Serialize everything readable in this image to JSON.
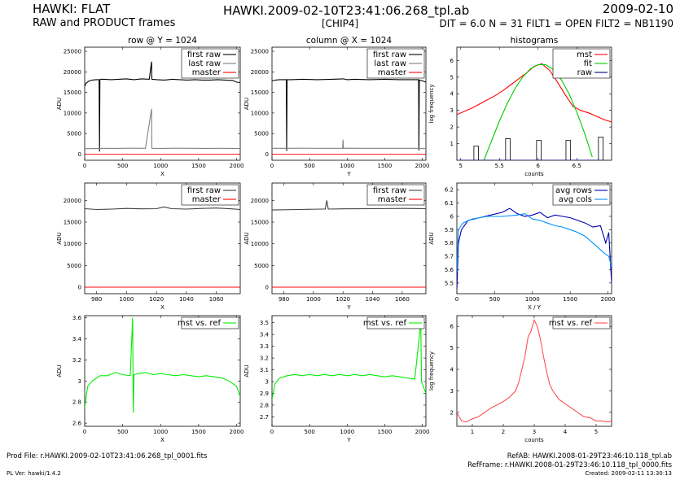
{
  "header": {
    "left_title": "HAWKI: FLAT",
    "left_subtitle": "RAW and PRODUCT frames",
    "center_title": "HAWKI.2009-02-10T23:41:06.268_tpl.ab",
    "center_subtitle": "[CHIP4]",
    "right_title": "2009-02-10",
    "right_subtitle": "DIT = 6.0 N = 31 FILT1 = OPEN FILT2 = NB1190"
  },
  "footer": {
    "prod_file": "Prod File: r.HAWKI.2009-02-10T23:41:06.268_tpl_0001.fits",
    "pl_version": "PL Ver: hawki/1.4.2",
    "ref_ab": "RefAB: HAWKI.2008-01-29T23:46:10.118_tpl.ab",
    "ref_frame": "RefFrame: r.HAWKI.2008-01-29T23:46:10.118_tpl_0000.fits",
    "created": "Created: 2009-02-11 13:30:13"
  },
  "colors": {
    "raw": "#000000",
    "last_raw": "#808080",
    "master": "#ff0000",
    "fit": "#00cc00",
    "ratio": "#00ee00",
    "avg_rows": "#0000b0",
    "avg_cols": "#0090ff"
  },
  "chart_data": [
    {
      "id": "row-full",
      "type": "line",
      "title": "row @ Y = 1024",
      "xlabel": "X",
      "ylabel": "ADU",
      "xlim": [
        0,
        2048
      ],
      "ylim": [
        -1500,
        26000
      ],
      "xticks": [
        0,
        500,
        1000,
        1500,
        2000
      ],
      "yticks": [
        0,
        5000,
        10000,
        15000,
        20000,
        25000
      ],
      "legend": [
        "first raw",
        "last raw",
        "master"
      ],
      "legend_position": "top-right",
      "series": [
        {
          "name": "first raw",
          "color": "#000000",
          "x": [
            0,
            20,
            60,
            100,
            150,
            190,
            195,
            200,
            210,
            260,
            350,
            450,
            550,
            650,
            750,
            850,
            880,
            885,
            890,
            950,
            1050,
            1150,
            1250,
            1350,
            1450,
            1550,
            1650,
            1750,
            1850,
            1950,
            2000,
            2048
          ],
          "y": [
            16500,
            17300,
            17800,
            18000,
            18100,
            18100,
            600,
            18100,
            18200,
            18200,
            18100,
            18200,
            18300,
            18100,
            18300,
            18200,
            22500,
            18200,
            18200,
            18100,
            18000,
            18200,
            18100,
            18000,
            18100,
            18000,
            18000,
            18100,
            18000,
            17900,
            17500,
            17400
          ]
        },
        {
          "name": "last raw",
          "color": "#808080",
          "x": [
            0,
            150,
            250,
            400,
            600,
            800,
            880,
            885,
            890,
            1000,
            1200,
            1400,
            1600,
            1800,
            2048
          ],
          "y": [
            1300,
            1350,
            1400,
            1380,
            1420,
            1400,
            11000,
            1400,
            1400,
            1390,
            1420,
            1400,
            1380,
            1400,
            1350
          ]
        },
        {
          "name": "master",
          "color": "#ff0000",
          "x": [
            0,
            2048
          ],
          "y": [
            0,
            0
          ]
        }
      ]
    },
    {
      "id": "col-full",
      "type": "line",
      "title": "column @ X = 1024",
      "xlabel": "Y",
      "ylabel": "ADU",
      "xlim": [
        0,
        2048
      ],
      "ylim": [
        -1500,
        26000
      ],
      "xticks": [
        0,
        500,
        1000,
        1500,
        2000
      ],
      "yticks": [
        0,
        5000,
        10000,
        15000,
        20000,
        25000
      ],
      "legend": [
        "first raw",
        "last raw",
        "master"
      ],
      "legend_position": "top-right",
      "series": [
        {
          "name": "first raw",
          "color": "#000000",
          "x": [
            0,
            50,
            100,
            150,
            190,
            195,
            200,
            250,
            400,
            600,
            800,
            950,
            1000,
            1100,
            1300,
            1500,
            1700,
            1850,
            1950,
            1955,
            1960,
            2000,
            2048
          ],
          "y": [
            17800,
            18000,
            18100,
            18100,
            18100,
            800,
            18100,
            18100,
            18200,
            18100,
            18200,
            18300,
            18100,
            18200,
            18100,
            18200,
            18100,
            18100,
            18100,
            900,
            18000,
            17800,
            17500
          ]
        },
        {
          "name": "last raw",
          "color": "#808080",
          "x": [
            0,
            200,
            400,
            600,
            800,
            940,
            945,
            950,
            1000,
            1200,
            1400,
            1600,
            1800,
            2048
          ],
          "y": [
            1400,
            1400,
            1420,
            1400,
            1410,
            1400,
            3500,
            1400,
            1420,
            1400,
            1400,
            1410,
            1400,
            1380
          ]
        },
        {
          "name": "master",
          "color": "#ff0000",
          "x": [
            0,
            2048
          ],
          "y": [
            0,
            0
          ]
        }
      ]
    },
    {
      "id": "histograms",
      "type": "line",
      "title": "histograms",
      "xlabel": "counts",
      "ylabel": "log frequency",
      "xlim": [
        4.95,
        6.95
      ],
      "ylim": [
        0,
        6.8
      ],
      "xticks": [
        5,
        5.5,
        6,
        6.5
      ],
      "yticks": [
        1,
        2,
        3,
        4,
        5,
        6
      ],
      "legend": [
        "mst",
        "fit",
        "raw"
      ],
      "legend_position": "top-right",
      "series": [
        {
          "name": "mst",
          "color": "#ff0000",
          "x": [
            4.95,
            5.05,
            5.15,
            5.25,
            5.35,
            5.45,
            5.55,
            5.65,
            5.75,
            5.85,
            5.95,
            6.05,
            6.15,
            6.25,
            6.35,
            6.45,
            6.55,
            6.65,
            6.75,
            6.85,
            6.95
          ],
          "y": [
            2.75,
            2.95,
            3.15,
            3.4,
            3.65,
            3.9,
            4.2,
            4.55,
            4.9,
            5.25,
            5.65,
            5.8,
            5.4,
            4.7,
            3.95,
            3.25,
            3.0,
            2.85,
            2.65,
            2.45,
            2.3
          ]
        },
        {
          "name": "fit",
          "color": "#00cc00",
          "x": [
            5.3,
            5.4,
            5.5,
            5.6,
            5.7,
            5.8,
            5.9,
            6.0,
            6.1,
            6.2,
            6.3,
            6.4,
            6.5,
            6.6,
            6.7
          ],
          "y": [
            0.0,
            1.2,
            2.35,
            3.4,
            4.3,
            5.0,
            5.5,
            5.75,
            5.75,
            5.45,
            4.85,
            4.0,
            2.9,
            1.65,
            0.2
          ]
        },
        {
          "name": "raw",
          "color": "#000080",
          "x": [
            4.95,
            5.2,
            5.65,
            6.05,
            6.5,
            6.85
          ],
          "y": [
            0,
            0,
            0,
            0,
            0,
            0
          ]
        }
      ],
      "raw_bars": [
        [
          5.17,
          5.23,
          0.85
        ],
        [
          5.58,
          5.64,
          1.3
        ],
        [
          5.98,
          6.04,
          1.2
        ],
        [
          6.36,
          6.42,
          1.2
        ],
        [
          6.78,
          6.84,
          1.4
        ]
      ]
    },
    {
      "id": "row-zoom",
      "type": "line",
      "xlabel": "X",
      "ylabel": "ADU",
      "xlim": [
        972,
        1076
      ],
      "ylim": [
        -1500,
        24000
      ],
      "xticks": [
        980,
        1000,
        1020,
        1040,
        1060
      ],
      "yticks": [
        0,
        5000,
        10000,
        15000,
        20000
      ],
      "legend": [
        "first raw",
        "master"
      ],
      "legend_position": "top-right",
      "series": [
        {
          "name": "first raw",
          "color": "#404040",
          "x": [
            972,
            980,
            990,
            1000,
            1010,
            1020,
            1025,
            1030,
            1040,
            1050,
            1060,
            1070,
            1076
          ],
          "y": [
            18100,
            17900,
            18000,
            18150,
            18050,
            18100,
            18500,
            18100,
            18000,
            18150,
            18250,
            18050,
            17900
          ]
        },
        {
          "name": "master",
          "color": "#ff0000",
          "x": [
            972,
            1076
          ],
          "y": [
            0,
            0
          ]
        }
      ]
    },
    {
      "id": "col-zoom",
      "type": "line",
      "xlabel": "Y",
      "ylabel": "ADU",
      "xlim": [
        972,
        1076
      ],
      "ylim": [
        -1500,
        24000
      ],
      "xticks": [
        980,
        1000,
        1020,
        1040,
        1060
      ],
      "yticks": [
        0,
        5000,
        10000,
        15000,
        20000
      ],
      "legend": [
        "first raw",
        "master"
      ],
      "legend_position": "top-right",
      "series": [
        {
          "name": "first raw",
          "color": "#404040",
          "x": [
            972,
            990,
            1005,
            1008,
            1009,
            1010,
            1020,
            1040,
            1060,
            1076
          ],
          "y": [
            17800,
            17900,
            18000,
            18000,
            20000,
            18000,
            18050,
            18100,
            18150,
            18100
          ]
        },
        {
          "name": "master",
          "color": "#ff0000",
          "x": [
            972,
            1076
          ],
          "y": [
            0,
            0
          ]
        }
      ]
    },
    {
      "id": "avg",
      "type": "line",
      "xlabel": "X / Y",
      "ylabel": "ADU",
      "xlim": [
        0,
        2048
      ],
      "ylim": [
        5.42,
        6.25
      ],
      "xticks": [
        0,
        500,
        1000,
        1500,
        2000
      ],
      "yticks": [
        5.5,
        5.6,
        5.7,
        5.8,
        5.9,
        6,
        6.1,
        6.2
      ],
      "legend": [
        "avg rows",
        "avg cols"
      ],
      "legend_position": "top-right",
      "series": [
        {
          "name": "avg rows",
          "color": "#0000b0",
          "x": [
            0,
            20,
            60,
            150,
            300,
            450,
            600,
            700,
            800,
            900,
            1000,
            1100,
            1200,
            1300,
            1400,
            1500,
            1600,
            1700,
            1800,
            1900,
            1970,
            2010,
            2048
          ],
          "y": [
            5.45,
            5.8,
            5.9,
            5.97,
            5.99,
            6.01,
            6.03,
            6.06,
            6.02,
            6.0,
            6.01,
            6.03,
            5.99,
            6.01,
            6.0,
            5.99,
            5.97,
            5.95,
            5.92,
            5.93,
            5.8,
            5.88,
            5.5
          ]
        },
        {
          "name": "avg cols",
          "color": "#0090ff",
          "x": [
            0,
            20,
            80,
            200,
            400,
            600,
            800,
            900,
            1000,
            1100,
            1200,
            1300,
            1400,
            1500,
            1600,
            1700,
            1800,
            1900,
            1960,
            2010,
            2048
          ],
          "y": [
            5.58,
            5.9,
            5.95,
            5.98,
            6.0,
            6.0,
            6.01,
            6.02,
            5.98,
            5.97,
            5.95,
            5.93,
            5.92,
            5.9,
            5.88,
            5.85,
            5.8,
            5.75,
            5.72,
            5.7,
            5.62
          ]
        }
      ]
    },
    {
      "id": "ratio-row",
      "type": "line",
      "xlabel": "X",
      "ylabel": "ADU",
      "xlim": [
        0,
        2048
      ],
      "ylim": [
        2.57,
        3.62
      ],
      "xticks": [
        0,
        500,
        1000,
        1500,
        2000
      ],
      "yticks": [
        2.6,
        2.8,
        3,
        3.2,
        3.4,
        3.6
      ],
      "legend": [
        "mst vs. ref"
      ],
      "legend_position": "top-right",
      "series": [
        {
          "name": "mst vs. ref",
          "color": "#00ee00",
          "x": [
            0,
            40,
            100,
            200,
            300,
            400,
            500,
            600,
            630,
            640,
            650,
            700,
            800,
            900,
            1000,
            1100,
            1200,
            1300,
            1400,
            1500,
            1600,
            1700,
            1800,
            1900,
            2000,
            2048
          ],
          "y": [
            2.75,
            2.95,
            3.0,
            3.05,
            3.05,
            3.08,
            3.06,
            3.05,
            3.6,
            2.7,
            3.06,
            3.07,
            3.08,
            3.06,
            3.07,
            3.06,
            3.05,
            3.06,
            3.05,
            3.04,
            3.05,
            3.04,
            3.03,
            3.0,
            2.95,
            2.85
          ]
        }
      ]
    },
    {
      "id": "ratio-col",
      "type": "line",
      "xlabel": "Y",
      "ylabel": "ADU",
      "xlim": [
        0,
        2048
      ],
      "ylim": [
        2.62,
        3.56
      ],
      "xticks": [
        0,
        500,
        1000,
        1500,
        2000
      ],
      "yticks": [
        2.7,
        2.8,
        2.9,
        3,
        3.1,
        3.2,
        3.3,
        3.4,
        3.5
      ],
      "legend": [
        "mst vs. ref"
      ],
      "legend_position": "top-right",
      "series": [
        {
          "name": "mst vs. ref",
          "color": "#00ee00",
          "x": [
            0,
            40,
            100,
            200,
            300,
            400,
            500,
            600,
            700,
            800,
            900,
            1000,
            1100,
            1200,
            1300,
            1400,
            1500,
            1600,
            1700,
            1800,
            1900,
            1980,
            1990,
            2000,
            2048
          ],
          "y": [
            2.85,
            2.98,
            3.03,
            3.05,
            3.06,
            3.05,
            3.06,
            3.05,
            3.06,
            3.05,
            3.06,
            3.05,
            3.06,
            3.05,
            3.06,
            3.05,
            3.04,
            3.05,
            3.04,
            3.03,
            3.02,
            3.5,
            3.0,
            2.98,
            2.9
          ]
        }
      ]
    },
    {
      "id": "ratio-hist",
      "type": "line",
      "xlabel": "counts",
      "ylabel": "log frequency",
      "xlim": [
        0.5,
        5.5
      ],
      "ylim": [
        1.35,
        6.5
      ],
      "xticks": [
        1,
        2,
        3,
        4,
        5
      ],
      "yticks": [
        2,
        3,
        4,
        5,
        6
      ],
      "legend": [
        "mst vs. ref"
      ],
      "legend_position": "top-right",
      "series": [
        {
          "name": "mst vs. ref",
          "color": "#ff5050",
          "x": [
            0.5,
            0.65,
            0.8,
            1.0,
            1.2,
            1.4,
            1.6,
            1.8,
            2.0,
            2.2,
            2.4,
            2.5,
            2.6,
            2.7,
            2.8,
            2.9,
            3.0,
            3.1,
            3.2,
            3.3,
            3.4,
            3.5,
            3.6,
            3.8,
            4.0,
            4.2,
            4.4,
            4.6,
            4.8,
            5.0,
            5.2,
            5.4,
            5.5
          ],
          "y": [
            2.0,
            1.6,
            1.55,
            1.7,
            1.8,
            2.0,
            2.2,
            2.35,
            2.5,
            2.7,
            3.0,
            3.4,
            4.0,
            4.6,
            5.5,
            5.8,
            6.3,
            6.0,
            5.4,
            4.6,
            3.9,
            3.3,
            3.0,
            2.6,
            2.4,
            2.2,
            2.0,
            1.8,
            1.75,
            1.6,
            1.6,
            1.55,
            1.6
          ]
        }
      ]
    }
  ]
}
